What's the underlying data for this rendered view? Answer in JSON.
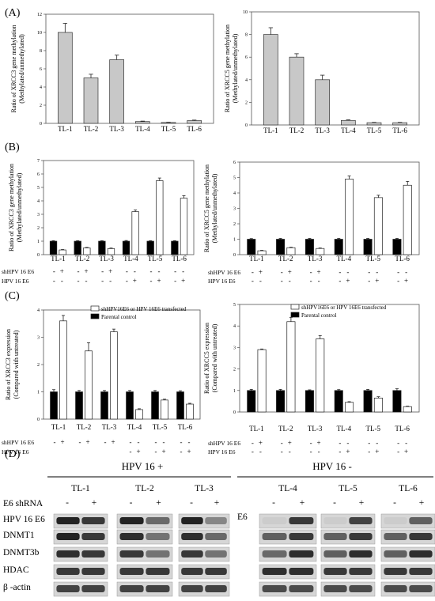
{
  "panels": {
    "A": "(A)",
    "B": "(B)",
    "C": "(C)",
    "D": "(D)"
  },
  "sign_rows": {
    "C_left": {
      "sh_label": "shHPV 16 E6",
      "hpv_label": "HPV 16 E6",
      "sh_signs": [
        "-",
        "+",
        "-",
        "+",
        "-",
        "+",
        "",
        "",
        "",
        "",
        "",
        ""
      ],
      "hpv_signs": [
        "",
        "",
        "",
        "",
        "",
        "",
        "-",
        "+",
        "-",
        "+",
        "-",
        "+"
      ]
    }
  },
  "chart_data": [
    {
      "id": "A_left",
      "type": "bar",
      "title": "",
      "ylabel_1": "Ratio of  XRCC3 gene methylation",
      "ylabel_2": "(Methylated/unmethylated)",
      "xlabel": "",
      "categories": [
        "TL-1",
        "TL-2",
        "TL-3",
        "TL-4",
        "TL-5",
        "TL-6"
      ],
      "series": [
        {
          "values": [
            10,
            5,
            7,
            0.2,
            0.1,
            0.3
          ],
          "errors": [
            1,
            0.4,
            0.5,
            0.05,
            0.03,
            0.06
          ]
        }
      ],
      "ylim": [
        0,
        12
      ],
      "yticks": [
        "0",
        "2",
        "4",
        "6",
        "8",
        "10",
        "12"
      ],
      "grid": false,
      "colors": {
        "bar": "#c8c8c8"
      }
    },
    {
      "id": "A_right",
      "type": "bar",
      "title": "",
      "ylabel_1": "Ratio of  XRCC5 gene methylation",
      "ylabel_2": "(Methylated/unmethylated)",
      "xlabel": "",
      "categories": [
        "TL-1",
        "TL-2",
        "TL-3",
        "TL-4",
        "TL-5",
        "TL-6"
      ],
      "series": [
        {
          "values": [
            8,
            6,
            4,
            0.4,
            0.2,
            0.2
          ],
          "errors": [
            0.6,
            0.3,
            0.4,
            0.05,
            0.03,
            0.03
          ]
        }
      ],
      "ylim": [
        0,
        10
      ],
      "yticks": [
        "0",
        "2",
        "4",
        "6",
        "8",
        "10"
      ],
      "grid": false,
      "colors": {
        "bar": "#c8c8c8"
      }
    },
    {
      "id": "B_left",
      "type": "bar",
      "title": "",
      "ylabel_1": "Ratio of XRCC3 gene methylation",
      "ylabel_2": "(Methylated/unmethylated)",
      "xlabel": "",
      "categories": [
        "TL-1",
        "TL-2",
        "TL-3",
        "TL-4",
        "TL-5",
        "TL-6"
      ],
      "series": [
        {
          "values": [
            1,
            1,
            1,
            1,
            1,
            1
          ],
          "errors": [
            0.04,
            0.04,
            0.04,
            0.05,
            0.04,
            0.04
          ]
        },
        {
          "values": [
            0.35,
            0.5,
            0.45,
            3.2,
            5.5,
            4.2
          ],
          "errors": [
            0.03,
            0.04,
            0.04,
            0.12,
            0.2,
            0.18
          ]
        }
      ],
      "ylim": [
        0,
        7
      ],
      "yticks": [
        "0",
        "1",
        "2",
        "3",
        "4",
        "5",
        "6",
        "7"
      ],
      "grid": false,
      "sign_rows": {
        "sh_label": "shHPV 16 E6",
        "hpv_label": "HPV 16 E6",
        "sh_signs": [
          "-",
          "+",
          "-",
          "+",
          "-",
          "+",
          "-",
          "-",
          "-",
          "-",
          "-",
          "-"
        ],
        "hpv_signs": [
          "-",
          "-",
          "-",
          "-",
          "-",
          "-",
          "-",
          "+",
          "-",
          "+",
          "-",
          "+"
        ]
      },
      "colors": {
        "series1": "#000000",
        "series2": "#ffffff"
      }
    },
    {
      "id": "B_right",
      "type": "bar",
      "title": "",
      "ylabel_1": "Ratio of XRCC5 gene methylation",
      "ylabel_2": "(Methylated/unmethylated)",
      "xlabel": "",
      "categories": [
        "TL-1",
        "TL-2",
        "TL-3",
        "TL-4",
        "TL-5",
        "TL-6"
      ],
      "series": [
        {
          "values": [
            1,
            1,
            1,
            1,
            1,
            1
          ],
          "errors": [
            0.04,
            0.05,
            0.05,
            0.05,
            0.05,
            0.05
          ]
        },
        {
          "values": [
            0.25,
            0.45,
            0.4,
            4.9,
            3.7,
            4.5
          ],
          "errors": [
            0.03,
            0.03,
            0.03,
            0.2,
            0.15,
            0.25
          ]
        }
      ],
      "ylim": [
        0,
        6
      ],
      "yticks": [
        "0",
        "1",
        "2",
        "3",
        "4",
        "5",
        "6"
      ],
      "grid": false,
      "sign_rows": {
        "sh_label": "shHPV 16 E6",
        "hpv_label": "HPV 16 E6",
        "sh_signs": [
          "-",
          "+",
          "-",
          "+",
          "-",
          "+",
          "-",
          "-",
          "-",
          "-",
          "-",
          "-"
        ],
        "hpv_signs": [
          "-",
          "-",
          "-",
          "-",
          "-",
          "-",
          "-",
          "+",
          "-",
          "+",
          "-",
          "+"
        ]
      },
      "colors": {
        "series1": "#000000",
        "series2": "#ffffff"
      }
    },
    {
      "id": "C_left",
      "type": "bar",
      "title": "",
      "ylabel_1": "Ratio of  XRCC3 expression",
      "ylabel_2": "(Compared with untreated)",
      "xlabel": "",
      "categories": [
        "TL-1",
        "TL-2",
        "TL-3",
        "TL-4",
        "TL-5",
        "TL-6"
      ],
      "legend": [
        "shHPV16E6 or HPV 16E6 transfected",
        "Parental control"
      ],
      "legend_position": "top-right",
      "series": [
        {
          "name": "Parental control",
          "values": [
            1,
            1,
            1,
            1,
            1,
            1
          ],
          "errors": [
            0.08,
            0.05,
            0.05,
            0.05,
            0.05,
            0.04
          ]
        },
        {
          "name": "shHPV16E6 or HPV 16E6 transfected",
          "values": [
            3.6,
            2.5,
            3.2,
            0.35,
            0.7,
            0.55
          ],
          "errors": [
            0.2,
            0.3,
            0.1,
            0.03,
            0.03,
            0.03
          ]
        }
      ],
      "ylim": [
        0,
        4
      ],
      "yticks": [
        "0",
        "1",
        "2",
        "3",
        "4"
      ],
      "grid": false,
      "colors": {
        "series1": "#000000",
        "series2": "#ffffff"
      }
    },
    {
      "id": "C_right",
      "type": "bar",
      "title": "",
      "ylabel_1": "Ratio of  XRCC5 expression",
      "ylabel_2": "(Compared with untreated)",
      "xlabel": "",
      "categories": [
        "TL-1",
        "TL-2",
        "TL-3",
        "TL-4",
        "TL-5",
        "TL-6"
      ],
      "legend": [
        "shHPV16E6 or HPV 16E6 transfected",
        "Parental control"
      ],
      "legend_position": "top-right",
      "series": [
        {
          "name": "Parental control",
          "values": [
            1,
            1,
            1,
            1,
            1,
            1
          ],
          "errors": [
            0.05,
            0.05,
            0.03,
            0.04,
            0.05,
            0.08
          ]
        },
        {
          "name": "shHPV16E6 or HPV 16E6 transfected",
          "values": [
            2.9,
            4.2,
            3.4,
            0.45,
            0.65,
            0.25
          ],
          "errors": [
            0.03,
            0.2,
            0.15,
            0.03,
            0.06,
            0.02
          ]
        }
      ],
      "ylim": [
        0,
        5
      ],
      "yticks": [
        "0",
        "1",
        "2",
        "3",
        "4",
        "5"
      ],
      "grid": false,
      "sign_rows": {
        "sh_label": "shHPV 16 E6",
        "hpv_label": "HPV 16 E6",
        "sh_signs": [
          "-",
          "+",
          "-",
          "+",
          "-",
          "+",
          "-",
          "-",
          "-",
          "-",
          "-",
          "-"
        ],
        "hpv_signs": [
          "-",
          "-",
          "-",
          "-",
          "-",
          "-",
          "-",
          "+",
          "-",
          "+",
          "-",
          "+"
        ]
      },
      "colors": {
        "series1": "#000000",
        "series2": "#ffffff"
      }
    }
  ],
  "blot": {
    "group_left": "HPV 16 +",
    "group_right": "HPV 16 -",
    "left_lines": [
      "TL-1",
      "TL-2",
      "TL-3"
    ],
    "right_lines": [
      "TL-4",
      "TL-5",
      "TL-6"
    ],
    "left_treat_label": "E6 shRNA",
    "right_treat_label": "E6",
    "minus": "-",
    "plus": "+",
    "rows": [
      "HPV 16 E6",
      "DNMT1",
      "DNMT3b",
      "HDAC",
      "β -actin"
    ]
  }
}
